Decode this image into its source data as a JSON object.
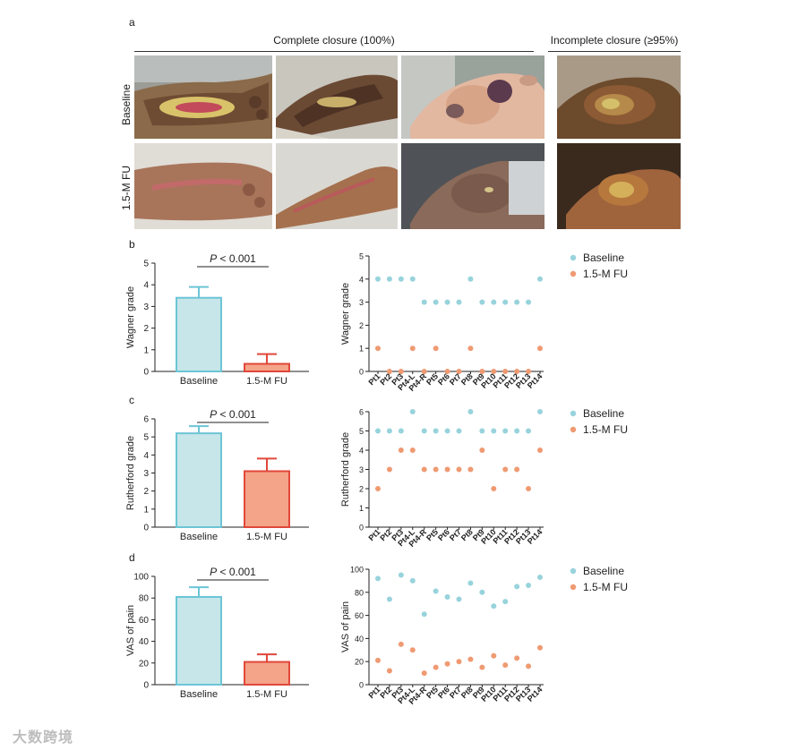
{
  "figure": {
    "panel_a": {
      "letter": "a",
      "complete_label": "Complete closure (100%)",
      "incomplete_label": "Incomplete closure (≥95%)",
      "row_baseline": "Baseline",
      "row_followup": "1.5-M FU"
    },
    "panel_b": {
      "letter": "b"
    },
    "panel_c": {
      "letter": "c"
    },
    "panel_d": {
      "letter": "d"
    },
    "watermark": "大数跨境"
  },
  "colors": {
    "baseline_fill": "#c7e6ea",
    "baseline_edge": "#6cc5d6",
    "followup_fill": "#f4a488",
    "followup_edge": "#e0473a",
    "baseline_dot": "#98d3dc",
    "followup_dot": "#ef9a72"
  },
  "chart_data": [
    {
      "type": "bar",
      "panel": "b",
      "categories": [
        "Baseline",
        "1.5-M FU"
      ],
      "values": [
        3.4,
        0.35
      ],
      "errors": [
        0.5,
        0.45
      ],
      "ylabel": "Wagner grade",
      "ylim": [
        0,
        5
      ],
      "yticks": [
        0,
        1,
        2,
        3,
        4,
        5
      ],
      "annotation": "P < 0.001",
      "annotation_p": "P",
      "annotation_rest": " < 0.001"
    },
    {
      "type": "scatter",
      "panel": "b",
      "categories": [
        "Pt1",
        "Pt2",
        "Pt3",
        "Pt4-L",
        "Pt4-R",
        "Pt5",
        "Pt6",
        "Pt7",
        "Pt8",
        "Pt9",
        "Pt10",
        "Pt11",
        "Pt12",
        "Pt13",
        "Pt14"
      ],
      "series": [
        {
          "name": "Baseline",
          "values": [
            4,
            4,
            4,
            4,
            3,
            3,
            3,
            3,
            4,
            3,
            3,
            3,
            3,
            3,
            4
          ]
        },
        {
          "name": "1.5-M FU",
          "values": [
            1,
            0,
            0,
            1,
            0,
            1,
            0,
            0,
            1,
            0,
            0,
            0,
            0,
            0,
            1
          ]
        }
      ],
      "ylabel": "Wagner grade",
      "ylim": [
        0,
        5
      ],
      "yticks": [
        0,
        1,
        2,
        3,
        4,
        5
      ],
      "legend": "right"
    },
    {
      "type": "bar",
      "panel": "c",
      "categories": [
        "Baseline",
        "1.5-M FU"
      ],
      "values": [
        5.2,
        3.1
      ],
      "errors": [
        0.4,
        0.7
      ],
      "ylabel": "Rutherford grade",
      "ylim": [
        0,
        6
      ],
      "yticks": [
        0,
        1,
        2,
        3,
        4,
        5,
        6
      ],
      "annotation": "P < 0.001",
      "annotation_p": "P",
      "annotation_rest": " < 0.001"
    },
    {
      "type": "scatter",
      "panel": "c",
      "categories": [
        "Pt1",
        "Pt2",
        "Pt3",
        "Pt4-L",
        "Pt4-R",
        "Pt5",
        "Pt6",
        "Pt7",
        "Pt8",
        "Pt9",
        "Pt10",
        "Pt11",
        "Pt12",
        "Pt13",
        "Pt14"
      ],
      "series": [
        {
          "name": "Baseline",
          "values": [
            5,
            5,
            5,
            6,
            5,
            5,
            5,
            5,
            6,
            5,
            5,
            5,
            5,
            5,
            6
          ]
        },
        {
          "name": "1.5-M FU",
          "values": [
            2,
            3,
            4,
            4,
            3,
            3,
            3,
            3,
            3,
            4,
            2,
            3,
            3,
            2,
            4
          ]
        }
      ],
      "ylabel": "Rutherford grade",
      "ylim": [
        0,
        6
      ],
      "yticks": [
        0,
        1,
        2,
        3,
        4,
        5,
        6
      ],
      "legend": "right"
    },
    {
      "type": "bar",
      "panel": "d",
      "categories": [
        "Baseline",
        "1.5-M FU"
      ],
      "values": [
        81,
        21
      ],
      "errors": [
        9,
        7
      ],
      "ylabel": "VAS of pain",
      "ylim": [
        0,
        100
      ],
      "yticks": [
        0,
        20,
        40,
        60,
        80,
        100
      ],
      "annotation": "P < 0.001",
      "annotation_p": "P",
      "annotation_rest": " < 0.001"
    },
    {
      "type": "scatter",
      "panel": "d",
      "categories": [
        "Pt1",
        "Pt2",
        "Pt3",
        "Pt4-L",
        "Pt4-R",
        "Pt5",
        "Pt6",
        "Pt7",
        "Pt8",
        "Pt9",
        "Pt10",
        "Pt11",
        "Pt12",
        "Pt13",
        "Pt14"
      ],
      "series": [
        {
          "name": "Baseline",
          "values": [
            92,
            74,
            95,
            90,
            61,
            81,
            76,
            74,
            88,
            80,
            68,
            72,
            85,
            86,
            93
          ]
        },
        {
          "name": "1.5-M FU",
          "values": [
            21,
            12,
            35,
            30,
            10,
            15,
            18,
            20,
            22,
            15,
            25,
            17,
            23,
            16,
            32
          ]
        }
      ],
      "ylabel": "VAS of pain",
      "ylim": [
        0,
        100
      ],
      "yticks": [
        0,
        20,
        40,
        60,
        80,
        100
      ],
      "legend": "right"
    }
  ]
}
